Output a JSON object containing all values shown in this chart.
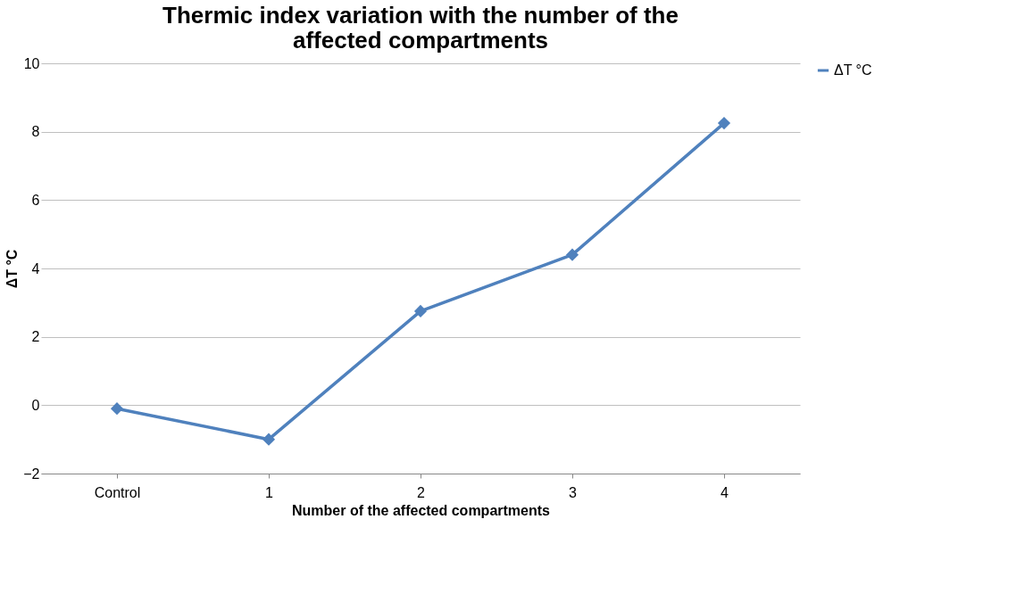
{
  "chart_data": {
    "type": "line",
    "title": "Thermic index variation with the  number of the affected compartments",
    "xlabel": "Number of the affected compartments",
    "ylabel": "ΔT  °C",
    "categories": [
      "Control",
      "1",
      "2",
      "3",
      "4"
    ],
    "series": [
      {
        "name": "ΔT °C",
        "color": "#4f81bd",
        "values": [
          -0.1,
          -1.0,
          2.75,
          4.4,
          8.25
        ]
      }
    ],
    "ylim": [
      -2,
      10
    ],
    "yticks": [
      -2,
      0,
      2,
      4,
      6,
      8,
      10
    ],
    "grid": "y",
    "legend": "right",
    "marker": "diamond",
    "line_style": "solid"
  }
}
